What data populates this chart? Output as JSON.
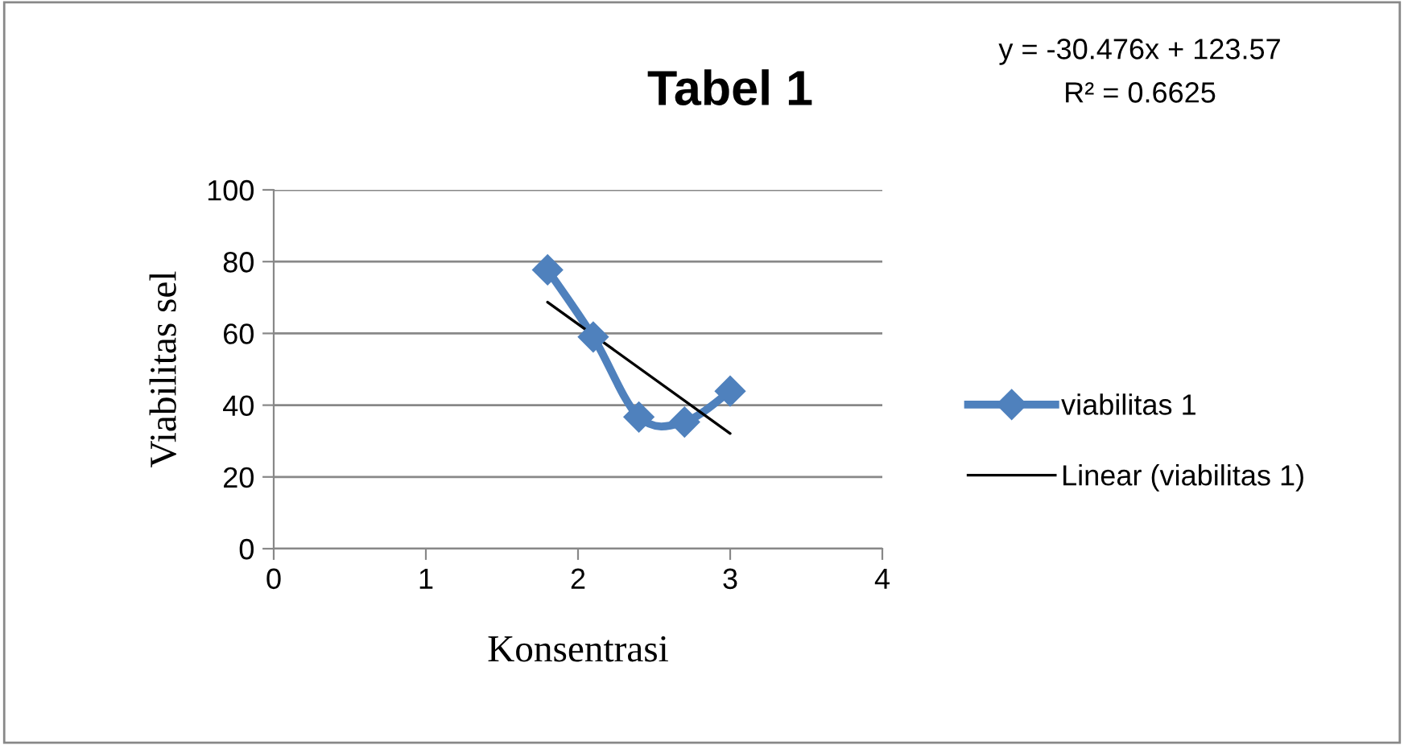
{
  "chart_data": {
    "type": "line",
    "title": "Tabel 1",
    "xlabel": "Konsentrasi",
    "ylabel": "Viabilitas sel",
    "annotations": [
      "y = -30.476x + 123.57",
      "R² = 0.6625"
    ],
    "xlim": [
      0,
      4
    ],
    "xticks": [
      0,
      1,
      2,
      3,
      4
    ],
    "ylim": [
      0,
      100
    ],
    "yticks": [
      0,
      20,
      40,
      60,
      80,
      100
    ],
    "grid": "y",
    "legend": "right",
    "series": [
      {
        "name": "viabilitas 1",
        "color": "#4f81bd",
        "x": [
          1.8,
          2.1,
          2.4,
          2.7,
          3.0
        ],
        "values": [
          77.7,
          59.0,
          36.7,
          35.3,
          43.9
        ],
        "marker": "diamond",
        "line_style": "solid"
      },
      {
        "name": "Linear (viabilitas 1)",
        "color": "#000000",
        "x": [
          1.8,
          3.0
        ],
        "values": [
          68.7,
          32.1
        ],
        "marker": "none",
        "line_style": "solid"
      }
    ]
  }
}
